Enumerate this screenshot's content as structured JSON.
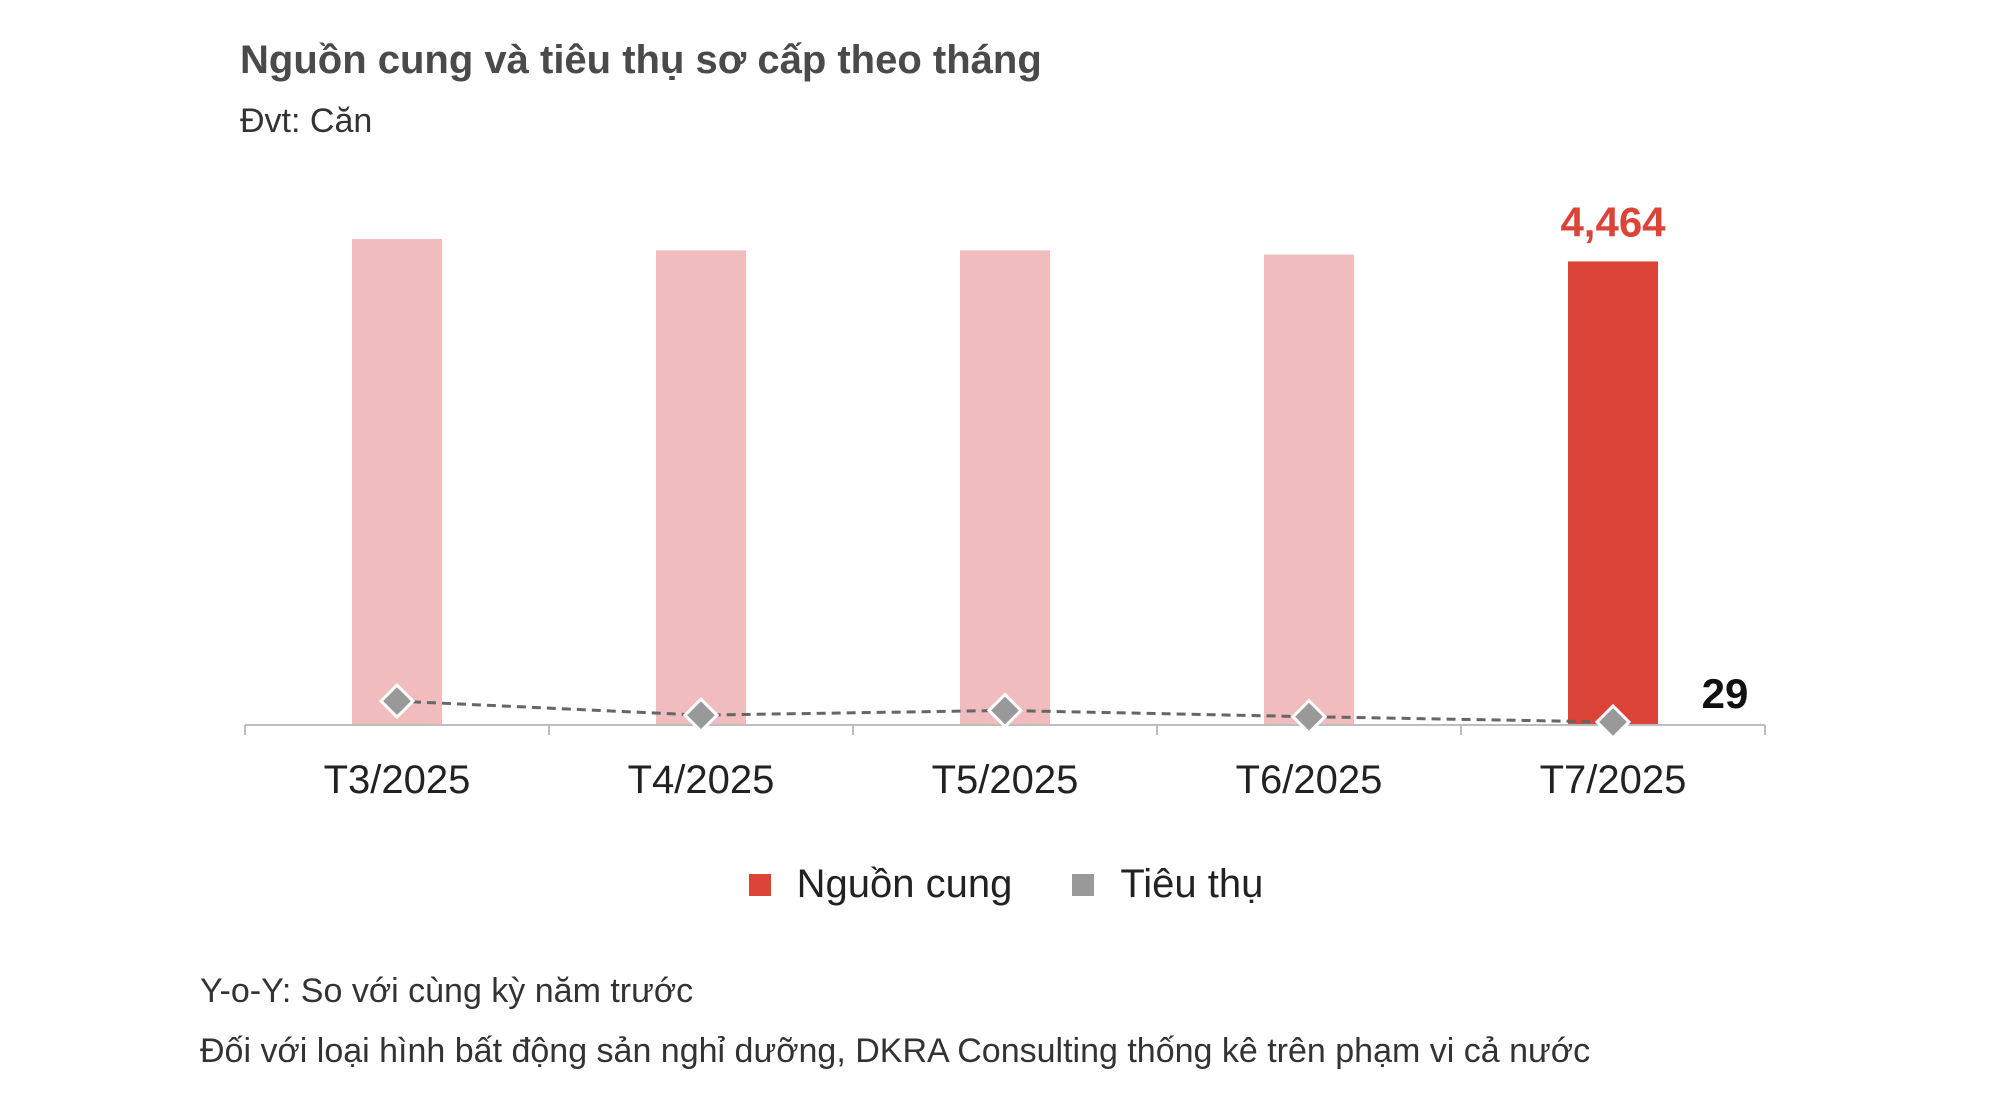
{
  "header": {
    "title": "Nguồn cung và tiêu thụ sơ cấp theo tháng",
    "unit": "Đvt: Căn"
  },
  "footnotes": {
    "note1": "Y-o-Y: So với cùng kỳ năm trước",
    "note2": "Đối với loại hình bất động sản nghỉ dưỡng, DKRA Consulting thống kê trên phạm vi cả nước"
  },
  "colors": {
    "supply_past": "#f0bcbd",
    "supply_current": "#dc4437",
    "consumption": "#999999",
    "consumption_line": "#666666",
    "label_red": "#dc4437"
  },
  "chart_data": {
    "type": "bar",
    "title": "Nguồn cung và tiêu thụ sơ cấp theo tháng",
    "categories": [
      "T3/2025",
      "T4/2025",
      "T5/2025",
      "T6/2025",
      "T7/2025"
    ],
    "series": [
      {
        "name": "Nguồn cung",
        "type": "bar",
        "values": [
          4680,
          4570,
          4570,
          4530,
          4464
        ]
      },
      {
        "name": "Tiêu thụ",
        "type": "line",
        "values": [
          230,
          95,
          140,
          80,
          29
        ]
      }
    ],
    "data_labels": {
      "Nguồn cung": "4,464",
      "Tiêu thụ": "29"
    },
    "ylim": [
      0,
      5200
    ],
    "legend": "bottom",
    "grid": false
  }
}
